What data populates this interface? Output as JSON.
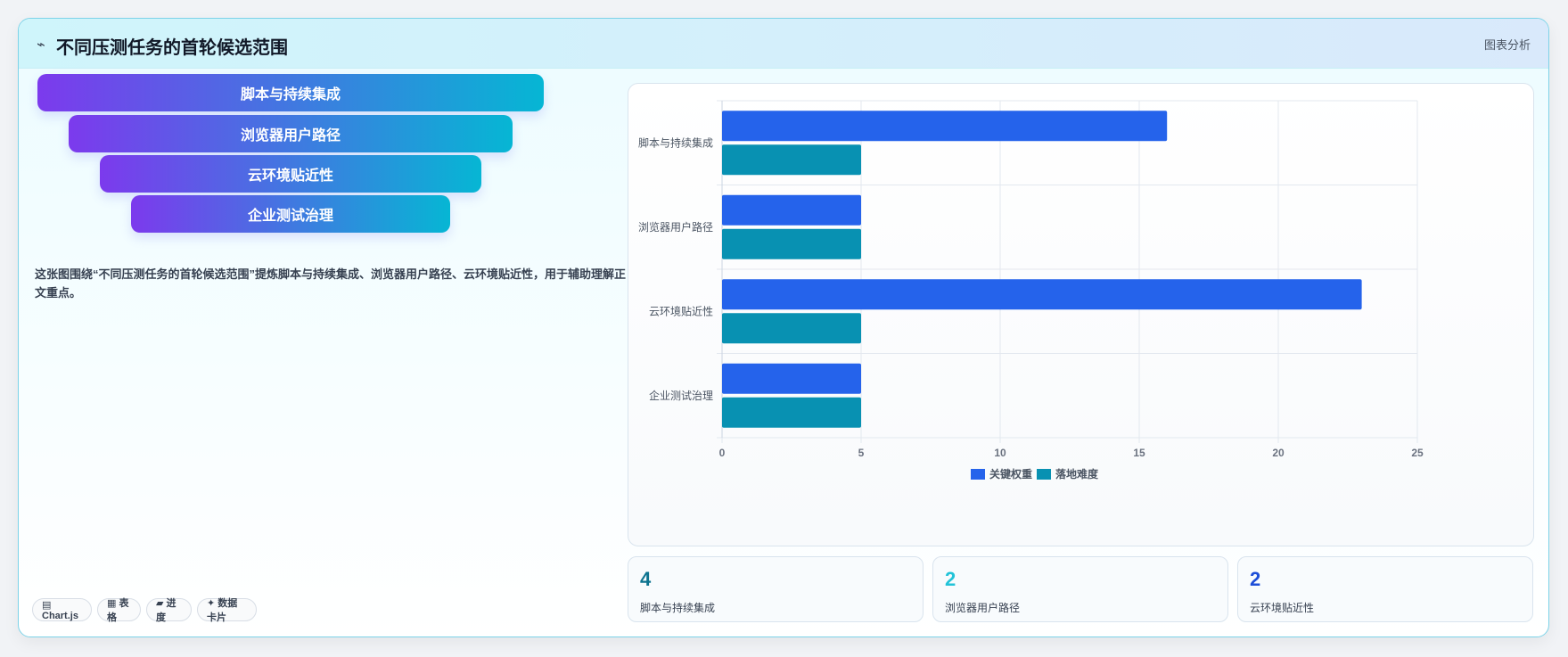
{
  "header": {
    "icon": "pulse-icon",
    "title": "不同压测任务的首轮候选范围",
    "tag": "图表分析"
  },
  "funnel": [
    {
      "label": "脚本与持续集成"
    },
    {
      "label": "浏览器用户路径"
    },
    {
      "label": "云环境贴近性"
    },
    {
      "label": "企业测试治理"
    }
  ],
  "description": "这张图围绕“不同压测任务的首轮候选范围”提炼脚本与持续集成、浏览器用户路径、云环境贴近性，用于辅助理解正文重点。",
  "pills": [
    {
      "icon": "chart-icon",
      "label": "▤ Chart.js"
    },
    {
      "icon": "table-icon",
      "label": "▦ 表格"
    },
    {
      "icon": "progress-icon",
      "label": "▰ 进度"
    },
    {
      "icon": "sparkle-icon",
      "label": "✦ 数据卡片"
    }
  ],
  "chart_data": {
    "type": "bar",
    "orientation": "horizontal",
    "categories": [
      "脚本与持续集成",
      "浏览器用户路径",
      "云环境贴近性",
      "企业测试治理"
    ],
    "series": [
      {
        "name": "关键权重",
        "values": [
          16,
          5,
          23,
          5
        ],
        "color": "#2563eb"
      },
      {
        "name": "落地难度",
        "values": [
          5,
          5,
          5,
          5
        ],
        "color": "#0891b2"
      }
    ],
    "xlim": [
      0,
      25
    ],
    "xticks": [
      0,
      5,
      10,
      15,
      20,
      25
    ],
    "grid": true,
    "legend": "bottom"
  },
  "stats": [
    {
      "value": "4",
      "label": "脚本与持续集成",
      "color": "#0e7490"
    },
    {
      "value": "2",
      "label": "浏览器用户路径",
      "color": "#22c3d8"
    },
    {
      "value": "2",
      "label": "云环境贴近性",
      "color": "#1d4ed8"
    }
  ]
}
